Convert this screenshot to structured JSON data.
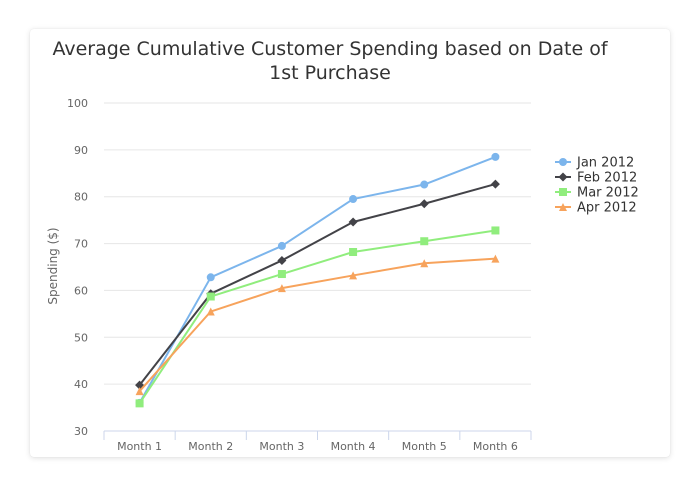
{
  "chart_data": {
    "type": "line",
    "title": "Average Cumulative Customer Spending based on Date of 1st Purchase",
    "title_lines": [
      "Average Cumulative Customer Spending based on Date of",
      "1st Purchase"
    ],
    "xlabel": "",
    "ylabel": "Spending ($)",
    "ylim": [
      30,
      100
    ],
    "yticks": [
      30,
      40,
      50,
      60,
      70,
      80,
      90,
      100
    ],
    "grid": true,
    "legend_position": "right",
    "categories": [
      "Month 1",
      "Month 2",
      "Month 3",
      "Month 4",
      "Month 5",
      "Month 6"
    ],
    "series": [
      {
        "name": "Jan 2012",
        "color": "#7cb5ec",
        "marker": "circle",
        "values": [
          36.0,
          62.8,
          69.5,
          79.5,
          82.6,
          88.5
        ]
      },
      {
        "name": "Feb 2012",
        "color": "#434348",
        "marker": "diamond",
        "values": [
          39.8,
          59.3,
          66.4,
          74.6,
          78.5,
          82.7
        ]
      },
      {
        "name": "Mar 2012",
        "color": "#90ed7d",
        "marker": "square",
        "values": [
          35.9,
          58.7,
          63.5,
          68.2,
          70.5,
          72.8
        ]
      },
      {
        "name": "Apr 2012",
        "color": "#f7a35c",
        "marker": "triangle",
        "values": [
          38.5,
          55.5,
          60.5,
          63.2,
          65.8,
          66.8
        ]
      }
    ]
  }
}
